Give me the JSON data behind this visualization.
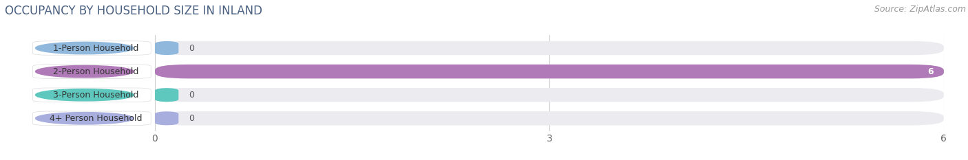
{
  "title": "OCCUPANCY BY HOUSEHOLD SIZE IN INLAND",
  "source": "Source: ZipAtlas.com",
  "categories": [
    "1-Person Household",
    "2-Person Household",
    "3-Person Household",
    "4+ Person Household"
  ],
  "values": [
    0,
    6,
    0,
    0
  ],
  "bar_colors": [
    "#90b8dc",
    "#b07ab8",
    "#5ec8be",
    "#a8aede"
  ],
  "background_color": "#ffffff",
  "bar_background_color": "#ebebf0",
  "xlim": [
    0,
    6
  ],
  "xticks": [
    0,
    3,
    6
  ],
  "title_color": "#4a6080",
  "source_color": "#999999",
  "value_color_dark": "#555555",
  "value_color_light": "#ffffff",
  "title_fontsize": 12,
  "source_fontsize": 9,
  "tick_fontsize": 10,
  "label_fontsize": 9,
  "bar_value_fontsize": 9
}
